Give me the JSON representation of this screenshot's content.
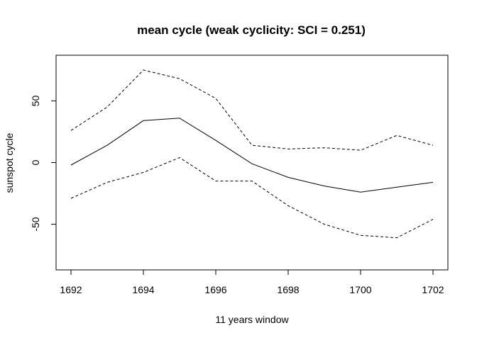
{
  "chart_data": {
    "type": "line",
    "title": "mean cycle (weak cyclicity: SCI = 0.251)",
    "xlabel": "11 years window",
    "ylabel": "sunspot cycle",
    "x": [
      1692,
      1693,
      1694,
      1695,
      1696,
      1697,
      1698,
      1699,
      1700,
      1701,
      1702
    ],
    "xticks": [
      1692,
      1694,
      1696,
      1698,
      1700,
      1702
    ],
    "yticks": [
      -50,
      0,
      50
    ],
    "xlim": [
      1692,
      1702
    ],
    "ylim": [
      -87,
      87
    ],
    "grid": false,
    "series": [
      {
        "name": "upper",
        "style": "dashed",
        "values": [
          26,
          45,
          75,
          68,
          52,
          14,
          11,
          12,
          10,
          22,
          14
        ]
      },
      {
        "name": "mean",
        "style": "solid",
        "values": [
          -2,
          14,
          34,
          36,
          18,
          -1,
          -12,
          -19,
          -24,
          -20,
          -16
        ]
      },
      {
        "name": "lower",
        "style": "dashed",
        "values": [
          -29,
          -16,
          -8,
          4,
          -15,
          -15,
          -35,
          -50,
          -59,
          -61,
          -46
        ]
      }
    ],
    "colors": {
      "line": "#000000",
      "background": "#ffffff"
    }
  }
}
